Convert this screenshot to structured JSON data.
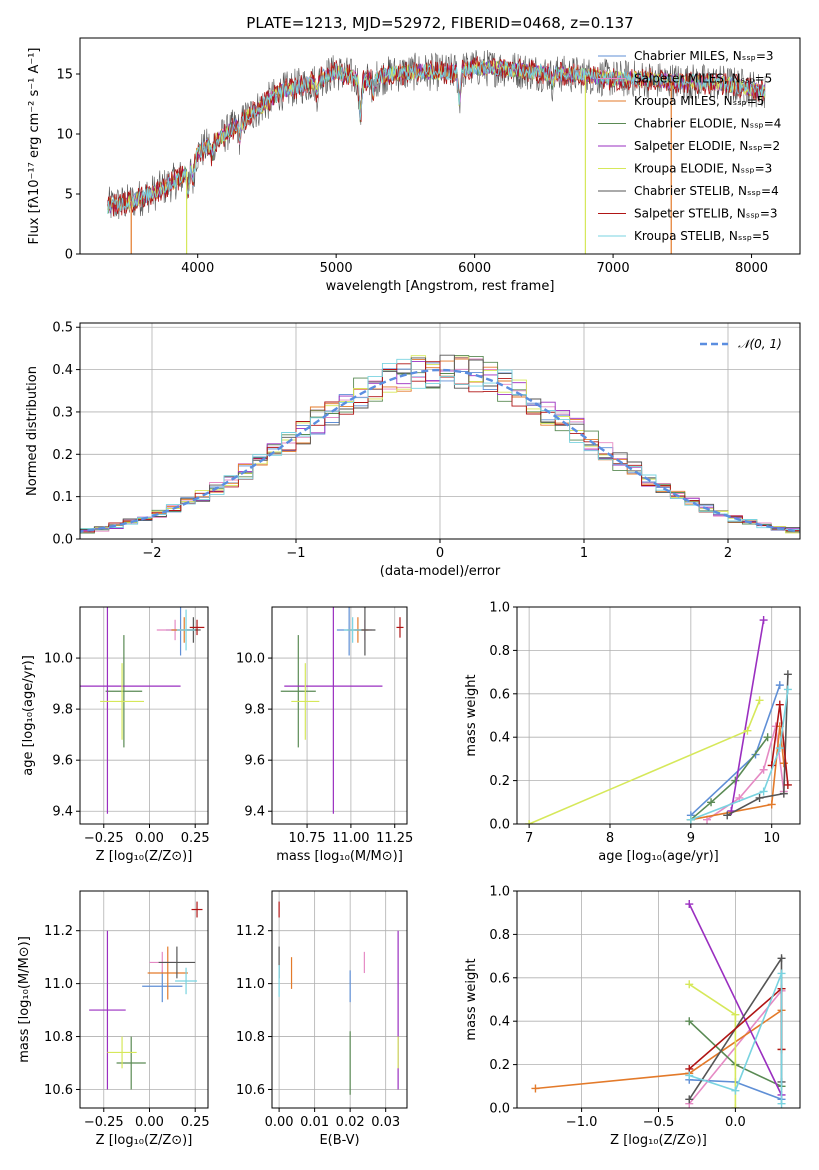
{
  "colors": {
    "Chabrier MILES": "#5f8fd6",
    "Salpeter MILES": "#e58ac4",
    "Kroupa MILES": "#e37a2a",
    "Chabrier ELODIE": "#5a8a54",
    "Salpeter ELODIE": "#9a2fc0",
    "Kroupa ELODIE": "#d6e85a",
    "Chabrier STELIB": "#555555",
    "Salpeter STELIB": "#b01515",
    "Kroupa STELIB": "#79d3e0",
    "gauss": "#5b8ee0"
  },
  "chart_data": [
    {
      "type": "line",
      "title": "PLATE=1213, MJD=52972, FIBERID=0468, z=0.137",
      "xlabel": "wavelength [Angstrom, rest frame]",
      "ylabel": "Flux [fλ10⁻¹⁷ erg cm⁻² s⁻¹ A⁻¹]",
      "xlim": [
        3150,
        8350
      ],
      "ylim": [
        0,
        18
      ],
      "xticks": [
        4000,
        5000,
        6000,
        7000,
        8000
      ],
      "yticks": [
        0,
        5,
        10,
        15
      ],
      "legend_position": "top-right",
      "legend": [
        "Chabrier MILES, Nₛₛₚ=3",
        "Salpeter MILES, Nₛₛₚ=5",
        "Kroupa MILES, Nₛₛₚ=5",
        "Chabrier ELODIE, Nₛₛₚ=4",
        "Salpeter ELODIE, Nₛₛₚ=2",
        "Kroupa ELODIE, Nₛₛₚ=3",
        "Chabrier STELIB, Nₛₛₚ=4",
        "Salpeter STELIB, Nₛₛₚ=3",
        "Kroupa STELIB, Nₛₛₚ=5"
      ],
      "continuum": {
        "x": [
          3350,
          3500,
          3700,
          3900,
          4000,
          4200,
          4400,
          4600,
          4800,
          5000,
          5200,
          5400,
          5600,
          5800,
          6000,
          6200,
          6400,
          6600,
          6800,
          7000,
          7200,
          7400,
          7600,
          7800,
          8000,
          8100
        ],
        "y": [
          4.0,
          4.3,
          5.2,
          6.5,
          8.4,
          10.0,
          11.8,
          13.5,
          14.2,
          15.2,
          14.4,
          15.0,
          15.2,
          15.1,
          15.5,
          15.5,
          15.2,
          15.0,
          14.9,
          14.6,
          14.6,
          14.4,
          14.3,
          14.2,
          13.8,
          13.5
        ]
      },
      "model_drops": [
        {
          "series": "Kroupa MILES",
          "x": 3520
        },
        {
          "series": "Kroupa ELODIE",
          "x": 3920
        },
        {
          "series": "Kroupa ELODIE",
          "x": 6800
        },
        {
          "series": "Kroupa MILES",
          "x": 7420
        }
      ]
    },
    {
      "type": "histogram",
      "xlabel": "(data-model)/error",
      "ylabel": "Normed distribution",
      "xlim": [
        -2.5,
        2.5
      ],
      "ylim": [
        0,
        0.51
      ],
      "xticks": [
        -2,
        -1,
        0,
        1,
        2
      ],
      "yticks": [
        0.0,
        0.1,
        0.2,
        0.3,
        0.4,
        0.5
      ],
      "legend": [
        "𝒩(0, 1)"
      ],
      "legend_position": "top-right",
      "bin_width": 0.1,
      "bins_start": -2.5
    },
    {
      "type": "scatter",
      "xlabel": "Z [log₁₀(Z/Z⊙)]",
      "ylabel": "age  [log₁₀(age/yr)]",
      "xlim": [
        -0.38,
        0.32
      ],
      "ylim": [
        9.35,
        10.2
      ],
      "xticks": [
        -0.25,
        0.0,
        0.25
      ],
      "yticks": [
        9.4,
        9.6,
        9.8,
        10.0
      ],
      "points": [
        {
          "series": "Chabrier MILES",
          "x": 0.17,
          "y": 10.11,
          "xe": 0.08,
          "ye": 0.1
        },
        {
          "series": "Salpeter MILES",
          "x": 0.14,
          "y": 10.11,
          "xe": 0.1,
          "ye": 0.04
        },
        {
          "series": "Kroupa MILES",
          "x": 0.19,
          "y": 10.11,
          "xe": 0.07,
          "ye": 0.05
        },
        {
          "series": "Chabrier ELODIE",
          "x": -0.14,
          "y": 9.87,
          "xe": 0.1,
          "ye": 0.22
        },
        {
          "series": "Salpeter ELODIE",
          "x": -0.23,
          "y": 9.89,
          "xe": 0.4,
          "ye": 0.5
        },
        {
          "series": "Kroupa ELODIE",
          "x": -0.15,
          "y": 9.83,
          "xe": 0.12,
          "ye": 0.15
        },
        {
          "series": "Chabrier STELIB",
          "x": 0.24,
          "y": 10.11,
          "xe": 0.04,
          "ye": 0.05
        },
        {
          "series": "Salpeter STELIB",
          "x": 0.26,
          "y": 10.12,
          "xe": 0.04,
          "ye": 0.03
        },
        {
          "series": "Kroupa STELIB",
          "x": 0.2,
          "y": 10.11,
          "xe": 0.05,
          "ye": 0.08
        }
      ]
    },
    {
      "type": "scatter",
      "xlabel": "mass [log₁₀(M/M⊙)]",
      "xlim": [
        10.55,
        11.32
      ],
      "ylim": [
        9.35,
        10.2
      ],
      "xticks": [
        10.75,
        11.0,
        11.25
      ],
      "yticks": [
        9.4,
        9.6,
        9.8,
        10.0
      ],
      "points": [
        {
          "series": "Chabrier MILES",
          "x": 10.99,
          "y": 10.11,
          "xe": 0.07,
          "ye": 0.1
        },
        {
          "series": "Salpeter MILES",
          "x": 11.08,
          "y": 10.11,
          "xe": 0.04,
          "ye": 0.04
        },
        {
          "series": "Kroupa MILES",
          "x": 11.04,
          "y": 10.11,
          "xe": 0.06,
          "ye": 0.05
        },
        {
          "series": "Chabrier ELODIE",
          "x": 10.7,
          "y": 9.87,
          "xe": 0.1,
          "ye": 0.22
        },
        {
          "series": "Salpeter ELODIE",
          "x": 10.9,
          "y": 9.89,
          "xe": 0.28,
          "ye": 0.5
        },
        {
          "series": "Kroupa ELODIE",
          "x": 10.74,
          "y": 9.83,
          "xe": 0.08,
          "ye": 0.15
        },
        {
          "series": "Chabrier STELIB",
          "x": 11.08,
          "y": 10.11,
          "xe": 0.06,
          "ye": 0.1
        },
        {
          "series": "Salpeter STELIB",
          "x": 11.28,
          "y": 10.12,
          "xe": 0.02,
          "ye": 0.04
        },
        {
          "series": "Kroupa STELIB",
          "x": 11.01,
          "y": 10.11,
          "xe": 0.05,
          "ye": 0.05
        }
      ]
    },
    {
      "type": "line",
      "xlabel": "age  [log₁₀(age/yr)]",
      "ylabel": "mass weight",
      "xlim": [
        6.85,
        10.35
      ],
      "ylim": [
        0,
        1.0
      ],
      "xticks": [
        7,
        8,
        9,
        10
      ],
      "yticks": [
        0.0,
        0.2,
        0.4,
        0.6,
        0.8,
        1.0
      ],
      "series": [
        {
          "name": "Chabrier MILES",
          "x": [
            9.0,
            9.8,
            10.1
          ],
          "y": [
            0.04,
            0.32,
            0.64
          ]
        },
        {
          "name": "Salpeter MILES",
          "x": [
            9.2,
            9.6,
            9.9,
            10.05,
            10.15
          ],
          "y": [
            0.02,
            0.12,
            0.25,
            0.45,
            0.15
          ]
        },
        {
          "name": "Kroupa MILES",
          "x": [
            9.0,
            10.0,
            10.1,
            10.15
          ],
          "y": [
            0.02,
            0.09,
            0.45,
            0.28
          ]
        },
        {
          "name": "Chabrier ELODIE",
          "x": [
            9.0,
            9.25,
            9.55,
            9.95
          ],
          "y": [
            0.02,
            0.1,
            0.2,
            0.4
          ]
        },
        {
          "name": "Salpeter ELODIE",
          "x": [
            9.5,
            9.9
          ],
          "y": [
            0.06,
            0.94
          ]
        },
        {
          "name": "Kroupa ELODIE",
          "x": [
            7.0,
            9.7,
            9.85
          ],
          "y": [
            0.0,
            0.43,
            0.57
          ]
        },
        {
          "name": "Chabrier STELIB",
          "x": [
            9.45,
            9.85,
            10.15,
            10.2
          ],
          "y": [
            0.04,
            0.12,
            0.14,
            0.69
          ]
        },
        {
          "name": "Salpeter STELIB",
          "x": [
            10.0,
            10.1,
            10.2
          ],
          "y": [
            0.27,
            0.55,
            0.18
          ]
        },
        {
          "name": "Kroupa STELIB",
          "x": [
            9.0,
            9.9,
            10.1,
            10.2
          ],
          "y": [
            0.02,
            0.15,
            0.35,
            0.62
          ]
        }
      ]
    },
    {
      "type": "scatter",
      "xlabel": "Z [log₁₀(Z/Z⊙)]",
      "ylabel": "mass [log₁₀(M/M⊙)]",
      "xlim": [
        -0.38,
        0.32
      ],
      "ylim": [
        10.53,
        11.35
      ],
      "xticks": [
        -0.25,
        0.0,
        0.25
      ],
      "yticks": [
        10.6,
        10.8,
        11.0,
        11.2
      ],
      "points": [
        {
          "series": "Chabrier MILES",
          "x": 0.07,
          "y": 10.99,
          "xe": 0.11,
          "ye": 0.06
        },
        {
          "series": "Salpeter MILES",
          "x": 0.07,
          "y": 11.08,
          "xe": 0.07,
          "ye": 0.04
        },
        {
          "series": "Kroupa MILES",
          "x": 0.1,
          "y": 11.04,
          "xe": 0.11,
          "ye": 0.1
        },
        {
          "series": "Chabrier ELODIE",
          "x": -0.1,
          "y": 10.7,
          "xe": 0.08,
          "ye": 0.1
        },
        {
          "series": "Salpeter ELODIE",
          "x": -0.23,
          "y": 10.9,
          "xe": 0.1,
          "ye": 0.3
        },
        {
          "series": "Kroupa ELODIE",
          "x": -0.15,
          "y": 10.74,
          "xe": 0.08,
          "ye": 0.06
        },
        {
          "series": "Chabrier STELIB",
          "x": 0.15,
          "y": 11.08,
          "xe": 0.1,
          "ye": 0.06
        },
        {
          "series": "Salpeter STELIB",
          "x": 0.26,
          "y": 11.28,
          "xe": 0.03,
          "ye": 0.03
        },
        {
          "series": "Kroupa STELIB",
          "x": 0.2,
          "y": 11.01,
          "xe": 0.06,
          "ye": 0.05
        }
      ]
    },
    {
      "type": "scatter",
      "xlabel": "E(B-V)",
      "xlim": [
        -0.002,
        0.036
      ],
      "ylim": [
        10.53,
        11.35
      ],
      "xticks": [
        0.0,
        0.01,
        0.02,
        0.03
      ],
      "yticks": [
        10.6,
        10.8,
        11.0,
        11.2
      ],
      "points": [
        {
          "series": "Chabrier MILES",
          "x": 0.02,
          "y": 10.99,
          "ye": 0.06
        },
        {
          "series": "Salpeter MILES",
          "x": 0.024,
          "y": 11.08,
          "ye": 0.04
        },
        {
          "series": "Kroupa MILES",
          "x": 0.0035,
          "y": 11.04,
          "ye": 0.06
        },
        {
          "series": "Chabrier ELODIE",
          "x": 0.02,
          "y": 10.7,
          "ye": 0.12
        },
        {
          "series": "Salpeter ELODIE",
          "x": 0.0335,
          "y": 10.9,
          "ye": 0.3
        },
        {
          "series": "Kroupa ELODIE",
          "x": 0.0335,
          "y": 10.74,
          "ye": 0.06
        },
        {
          "series": "Chabrier STELIB",
          "x": 0.0,
          "y": 11.08,
          "ye": 0.06
        },
        {
          "series": "Salpeter STELIB",
          "x": 0.0,
          "y": 11.28,
          "ye": 0.03
        },
        {
          "series": "Kroupa STELIB",
          "x": 0.0,
          "y": 11.01,
          "ye": 0.06
        }
      ]
    },
    {
      "type": "line",
      "xlabel": "Z [log₁₀(Z/Z⊙)]",
      "ylabel": "mass weight",
      "xlim": [
        -1.42,
        0.42
      ],
      "ylim": [
        0,
        1.0
      ],
      "xticks": [
        -1.0,
        -0.5,
        0.0
      ],
      "yticks": [
        0.0,
        0.2,
        0.4,
        0.6,
        0.8,
        1.0
      ],
      "series": [
        {
          "name": "Chabrier MILES",
          "x": [
            -0.3,
            0.0,
            0.3
          ],
          "y": [
            0.13,
            0.12,
            0.04
          ]
        },
        {
          "name": "Salpeter MILES",
          "x": [
            -0.3,
            0.3
          ],
          "y": [
            0.02,
            0.54
          ]
        },
        {
          "name": "Kroupa MILES",
          "x": [
            -1.3,
            -0.3,
            0.3,
            0.3
          ],
          "y": [
            0.09,
            0.16,
            0.45,
            0.27
          ]
        },
        {
          "name": "Chabrier ELODIE",
          "x": [
            -0.3,
            0.0,
            0.3
          ],
          "y": [
            0.4,
            0.2,
            0.1
          ]
        },
        {
          "name": "Salpeter ELODIE",
          "x": [
            -0.3,
            0.3
          ],
          "y": [
            0.94,
            0.06
          ]
        },
        {
          "name": "Kroupa ELODIE",
          "x": [
            -0.3,
            0.0,
            0.0
          ],
          "y": [
            0.57,
            0.43,
            0.0
          ]
        },
        {
          "name": "Chabrier STELIB",
          "x": [
            -0.3,
            0.3,
            0.3
          ],
          "y": [
            0.04,
            0.69,
            0.12
          ]
        },
        {
          "name": "Salpeter STELIB",
          "x": [
            -0.3,
            0.3,
            0.3
          ],
          "y": [
            0.18,
            0.55,
            0.27
          ]
        },
        {
          "name": "Kroupa STELIB",
          "x": [
            -0.3,
            0.0,
            0.3,
            0.3
          ],
          "y": [
            0.15,
            0.08,
            0.62,
            0.02
          ]
        }
      ]
    }
  ]
}
